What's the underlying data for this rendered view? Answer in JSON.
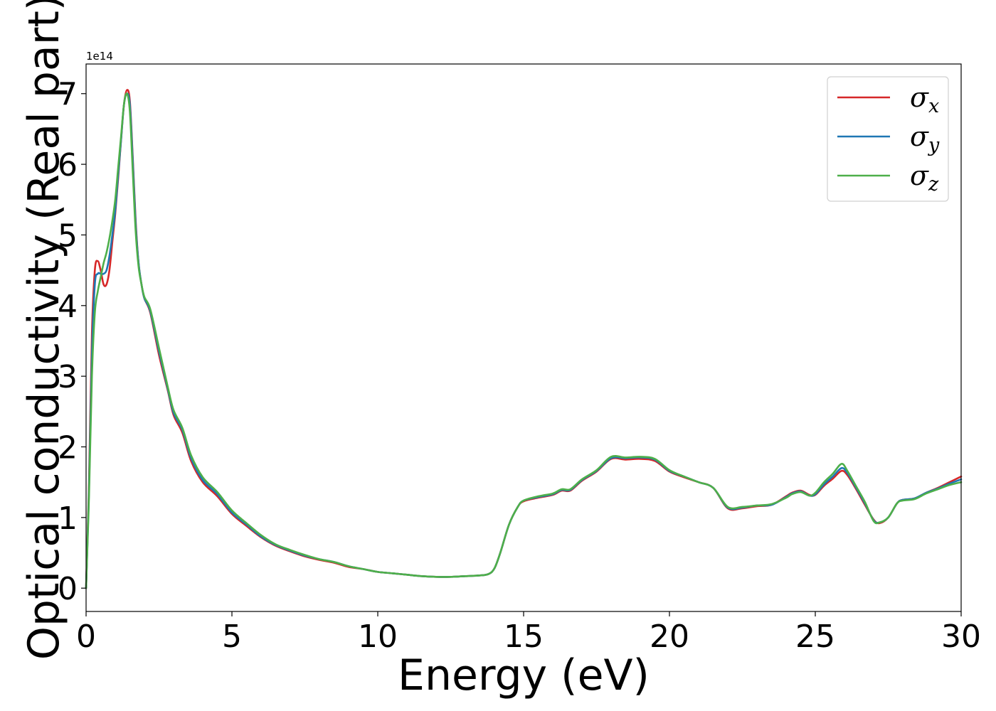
{
  "chart_data": {
    "type": "line",
    "xlabel": "Energy (eV)",
    "ylabel": "Optical conductivity (Real part)",
    "y_offset_label": "1e14",
    "xlim": [
      0,
      30
    ],
    "ylim": [
      -0.33,
      7.42
    ],
    "xticks": [
      0,
      5,
      10,
      15,
      20,
      25,
      30
    ],
    "yticks": [
      0,
      1,
      2,
      3,
      4,
      5,
      6,
      7
    ],
    "grid": false,
    "legend_position": "top-right",
    "x": [
      0,
      0.1,
      0.2,
      0.3,
      0.4,
      0.5,
      0.6,
      0.7,
      0.8,
      0.9,
      1.0,
      1.1,
      1.2,
      1.3,
      1.4,
      1.5,
      1.6,
      1.7,
      1.8,
      1.9,
      2.0,
      2.2,
      2.5,
      2.8,
      3.0,
      3.3,
      3.6,
      4.0,
      4.5,
      5.0,
      5.5,
      6.0,
      6.5,
      7.0,
      7.5,
      8.0,
      8.5,
      9.0,
      9.5,
      10.0,
      10.5,
      11.0,
      11.5,
      12.0,
      12.5,
      13.0,
      13.5,
      13.8,
      14.0,
      14.2,
      14.5,
      14.8,
      15.0,
      15.5,
      16.0,
      16.3,
      16.6,
      17.0,
      17.5,
      18.0,
      18.5,
      19.0,
      19.5,
      20.0,
      20.5,
      21.0,
      21.5,
      22.0,
      22.5,
      23.0,
      23.5,
      24.0,
      24.2,
      24.5,
      24.8,
      25.0,
      25.3,
      25.6,
      25.9,
      26.1,
      26.4,
      26.7,
      27.0,
      27.2,
      27.5,
      27.8,
      28.0,
      28.4,
      28.8,
      29.2,
      29.6,
      30.0
    ],
    "series": [
      {
        "name": "σ_x",
        "color": "#d62728",
        "values": [
          0,
          1.5,
          3.6,
          4.5,
          4.63,
          4.5,
          4.3,
          4.3,
          4.5,
          4.9,
          5.3,
          5.8,
          6.35,
          6.85,
          7.05,
          6.9,
          6.1,
          5.2,
          4.6,
          4.3,
          4.1,
          3.9,
          3.3,
          2.8,
          2.45,
          2.2,
          1.8,
          1.5,
          1.3,
          1.05,
          0.88,
          0.72,
          0.6,
          0.52,
          0.45,
          0.4,
          0.36,
          0.3,
          0.27,
          0.23,
          0.21,
          0.19,
          0.17,
          0.16,
          0.16,
          0.17,
          0.18,
          0.2,
          0.28,
          0.5,
          0.9,
          1.15,
          1.23,
          1.28,
          1.32,
          1.38,
          1.38,
          1.52,
          1.65,
          1.83,
          1.82,
          1.83,
          1.8,
          1.65,
          1.57,
          1.5,
          1.42,
          1.13,
          1.13,
          1.16,
          1.18,
          1.3,
          1.35,
          1.38,
          1.32,
          1.32,
          1.45,
          1.55,
          1.66,
          1.6,
          1.4,
          1.18,
          0.97,
          0.92,
          1.0,
          1.2,
          1.25,
          1.27,
          1.35,
          1.42,
          1.5,
          1.58
        ]
      },
      {
        "name": "σ_y",
        "color": "#1f77b4",
        "values": [
          0,
          1.4,
          3.3,
          4.3,
          4.45,
          4.45,
          4.45,
          4.5,
          4.7,
          5.0,
          5.35,
          5.85,
          6.35,
          6.85,
          7.0,
          6.85,
          6.05,
          5.15,
          4.6,
          4.3,
          4.1,
          3.92,
          3.35,
          2.82,
          2.48,
          2.24,
          1.84,
          1.53,
          1.33,
          1.07,
          0.9,
          0.73,
          0.61,
          0.53,
          0.46,
          0.41,
          0.37,
          0.31,
          0.27,
          0.23,
          0.21,
          0.19,
          0.17,
          0.16,
          0.16,
          0.17,
          0.18,
          0.2,
          0.28,
          0.5,
          0.9,
          1.15,
          1.24,
          1.29,
          1.33,
          1.39,
          1.39,
          1.53,
          1.66,
          1.84,
          1.84,
          1.85,
          1.82,
          1.66,
          1.58,
          1.5,
          1.42,
          1.14,
          1.14,
          1.17,
          1.18,
          1.29,
          1.34,
          1.37,
          1.31,
          1.33,
          1.47,
          1.58,
          1.7,
          1.63,
          1.42,
          1.2,
          0.96,
          0.93,
          1.0,
          1.2,
          1.25,
          1.27,
          1.35,
          1.41,
          1.48,
          1.54
        ]
      },
      {
        "name": "σ_z",
        "color": "#4daf4a",
        "values": [
          0,
          1.3,
          3.0,
          3.9,
          4.2,
          4.4,
          4.6,
          4.75,
          4.95,
          5.2,
          5.5,
          5.95,
          6.4,
          6.85,
          7.0,
          6.75,
          5.9,
          5.05,
          4.55,
          4.3,
          4.12,
          3.95,
          3.4,
          2.85,
          2.52,
          2.27,
          1.88,
          1.57,
          1.36,
          1.1,
          0.92,
          0.75,
          0.62,
          0.54,
          0.47,
          0.41,
          0.37,
          0.31,
          0.27,
          0.23,
          0.21,
          0.19,
          0.17,
          0.16,
          0.16,
          0.17,
          0.18,
          0.2,
          0.28,
          0.5,
          0.9,
          1.15,
          1.24,
          1.3,
          1.34,
          1.4,
          1.4,
          1.54,
          1.67,
          1.86,
          1.85,
          1.86,
          1.83,
          1.67,
          1.58,
          1.5,
          1.42,
          1.15,
          1.15,
          1.17,
          1.19,
          1.28,
          1.33,
          1.36,
          1.31,
          1.35,
          1.5,
          1.62,
          1.76,
          1.66,
          1.44,
          1.22,
          0.95,
          0.93,
          1.0,
          1.2,
          1.24,
          1.26,
          1.34,
          1.4,
          1.46,
          1.5
        ]
      }
    ]
  }
}
